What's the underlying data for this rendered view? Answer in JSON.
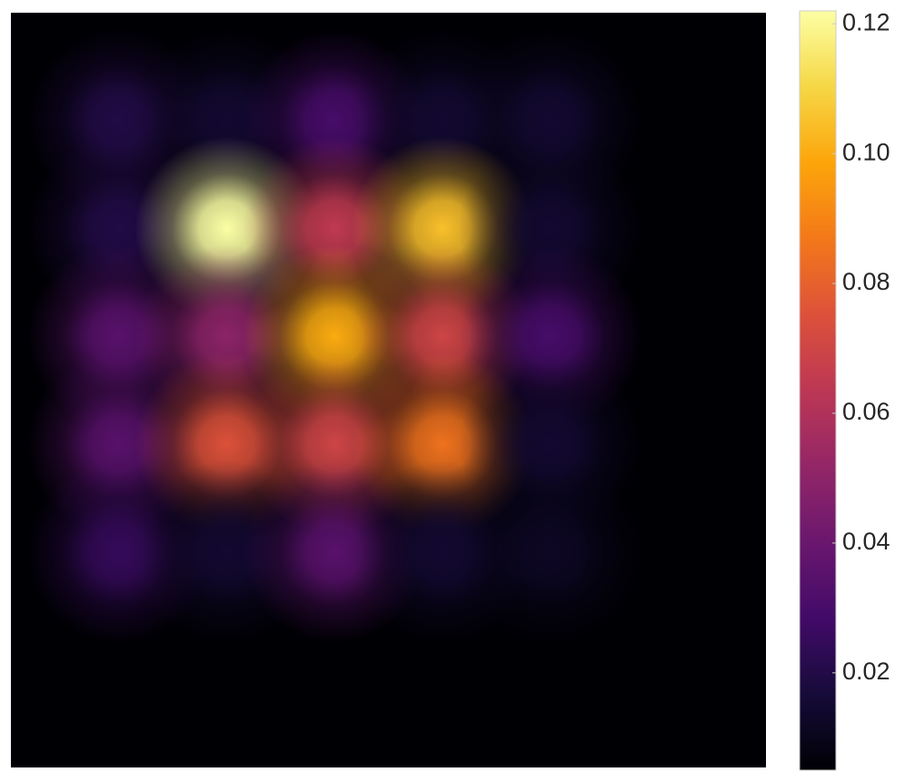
{
  "chart_data": {
    "type": "heatmap",
    "colormap": "inferno",
    "values": [
      [
        0.02,
        0.015,
        0.03,
        0.015,
        0.015
      ],
      [
        0.02,
        0.122,
        0.065,
        0.105,
        0.015
      ],
      [
        0.035,
        0.05,
        0.1,
        0.07,
        0.03
      ],
      [
        0.035,
        0.075,
        0.07,
        0.085,
        0.015
      ],
      [
        0.025,
        0.015,
        0.035,
        0.015,
        0.012
      ]
    ],
    "zlim": [
      0.005,
      0.122
    ],
    "colorbar_ticks": [
      0.02,
      0.04,
      0.06,
      0.08,
      {
        "value": 0.1,
        "label": "0.10"
      },
      0.12
    ]
  }
}
